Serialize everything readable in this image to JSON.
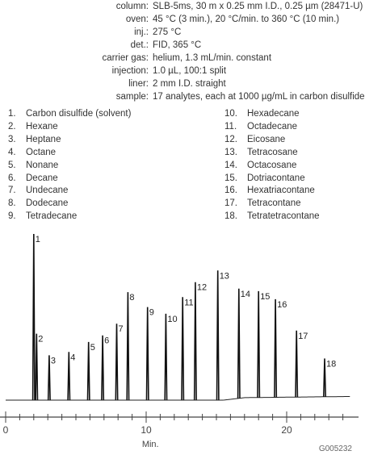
{
  "conditions": [
    {
      "key": "column:",
      "value": "SLB-5ms, 30 m x 0.25 mm I.D., 0.25 µm (28471-U)"
    },
    {
      "key": "oven:",
      "value": "45 °C (3 min.), 20 °C/min. to 360 °C (10 min.)"
    },
    {
      "key": "inj.:",
      "value": "275 °C"
    },
    {
      "key": "det.:",
      "value": "FID, 365 °C"
    },
    {
      "key": "carrier gas:",
      "value": "helium, 1.3 mL/min. constant"
    },
    {
      "key": "injection:",
      "value": "1.0 µL, 100:1 split"
    },
    {
      "key": "liner:",
      "value": "2 mm I.D. straight"
    },
    {
      "key": "sample:",
      "value": "17 analytes, each at 1000 µg/mL in carbon disulfide"
    }
  ],
  "peak_list": [
    {
      "num": "1.",
      "name": "Carbon disulfide (solvent)"
    },
    {
      "num": "2.",
      "name": "Hexane"
    },
    {
      "num": "3.",
      "name": "Heptane"
    },
    {
      "num": "4.",
      "name": "Octane"
    },
    {
      "num": "5.",
      "name": "Nonane"
    },
    {
      "num": "6.",
      "name": "Decane"
    },
    {
      "num": "7.",
      "name": "Undecane"
    },
    {
      "num": "8.",
      "name": "Dodecane"
    },
    {
      "num": "9.",
      "name": "Tetradecane"
    },
    {
      "num": "10.",
      "name": "Hexadecane"
    },
    {
      "num": "11.",
      "name": "Octadecane"
    },
    {
      "num": "12.",
      "name": "Eicosane"
    },
    {
      "num": "13.",
      "name": "Tetracosane"
    },
    {
      "num": "14.",
      "name": "Octacosane"
    },
    {
      "num": "15.",
      "name": "Dotriacontane"
    },
    {
      "num": "16.",
      "name": "Hexatriacontane"
    },
    {
      "num": "17.",
      "name": "Tetracontane"
    },
    {
      "num": "18.",
      "name": "Tetratetracontane"
    }
  ],
  "chart_data": {
    "type": "line",
    "xlabel": "Min.",
    "ylabel": "",
    "xlim": [
      0,
      24.5
    ],
    "ylim": [
      0,
      100
    ],
    "x_ticks": [
      0,
      10,
      20
    ],
    "peaks": [
      {
        "label": "1",
        "t": 2.0,
        "height": 100
      },
      {
        "label": "2",
        "t": 2.2,
        "height": 40
      },
      {
        "label": "3",
        "t": 3.1,
        "height": 27
      },
      {
        "label": "4",
        "t": 4.5,
        "height": 29
      },
      {
        "label": "5",
        "t": 5.9,
        "height": 35
      },
      {
        "label": "6",
        "t": 6.9,
        "height": 39
      },
      {
        "label": "7",
        "t": 7.9,
        "height": 46
      },
      {
        "label": "8",
        "t": 8.7,
        "height": 65
      },
      {
        "label": "9",
        "t": 10.1,
        "height": 56
      },
      {
        "label": "10",
        "t": 11.4,
        "height": 52
      },
      {
        "label": "11",
        "t": 12.6,
        "height": 62
      },
      {
        "label": "12",
        "t": 13.5,
        "height": 71
      },
      {
        "label": "13",
        "t": 15.1,
        "height": 78
      },
      {
        "label": "14",
        "t": 16.6,
        "height": 66
      },
      {
        "label": "15",
        "t": 18.0,
        "height": 64
      },
      {
        "label": "16",
        "t": 19.2,
        "height": 59
      },
      {
        "label": "17",
        "t": 20.7,
        "height": 40
      },
      {
        "label": "18",
        "t": 22.7,
        "height": 23
      }
    ],
    "baseline_rise": [
      {
        "t": 0,
        "level": 0
      },
      {
        "t": 15.5,
        "level": 0
      },
      {
        "t": 17.0,
        "level": 1.5
      },
      {
        "t": 24.5,
        "level": 2.2
      }
    ]
  },
  "figure_code": "G005232"
}
